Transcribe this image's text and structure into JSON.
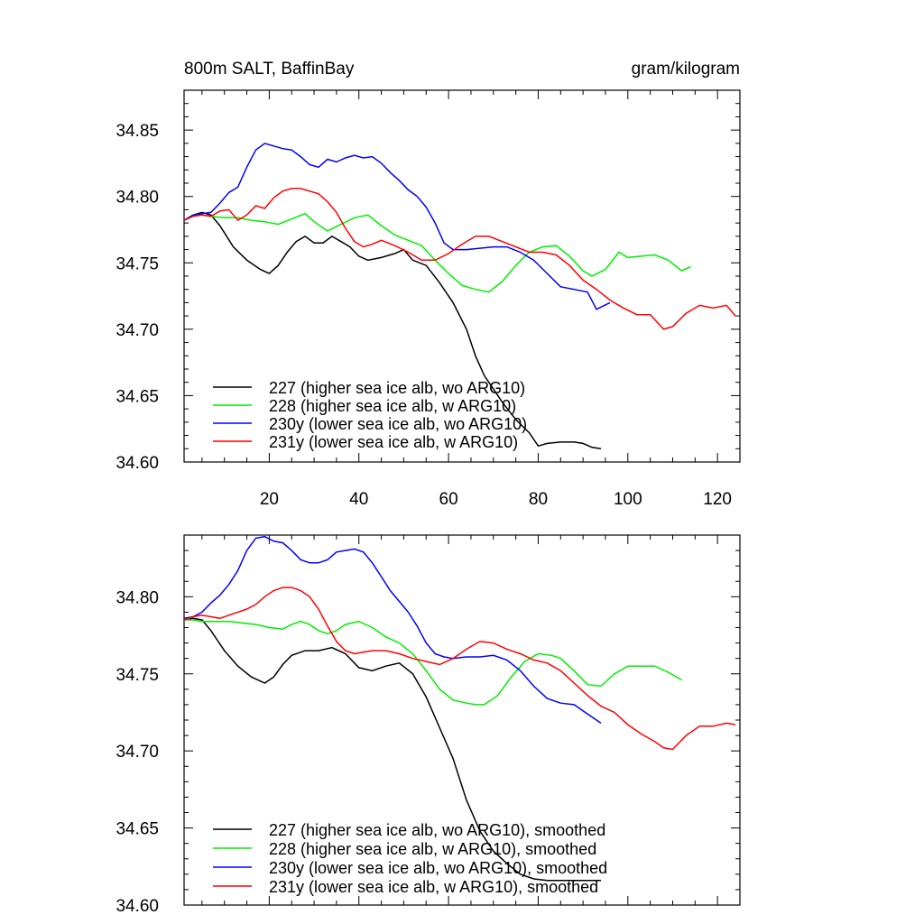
{
  "chart_data": [
    {
      "type": "line",
      "title_left": "800m SALT, BaffinBay",
      "title_right": "gram/kilogram",
      "xlabel": "",
      "ylabel": "",
      "xlim": [
        1,
        125
      ],
      "ylim": [
        34.6,
        34.88
      ],
      "xticks": [
        20,
        40,
        60,
        80,
        100,
        120
      ],
      "xtick_labels": [
        "20",
        "40",
        "60",
        "80",
        "100",
        "120"
      ],
      "yticks": [
        34.6,
        34.65,
        34.7,
        34.75,
        34.8,
        34.85
      ],
      "ytick_labels": [
        "34.60",
        "34.65",
        "34.70",
        "34.75",
        "34.80",
        "34.85"
      ],
      "legend_position": "bottom-left",
      "series": [
        {
          "name": "227 (higher sea ice alb, wo ARG10)",
          "color": "#000000",
          "x": [
            1,
            3,
            5,
            7,
            9,
            12,
            15,
            18,
            20,
            22,
            24,
            26,
            28,
            30,
            32,
            34,
            36,
            38,
            40,
            42,
            45,
            48,
            50,
            52,
            55,
            58,
            61,
            64,
            66,
            68,
            70,
            72,
            75,
            78,
            80,
            82,
            85,
            88,
            90,
            92,
            94
          ],
          "y": [
            34.782,
            34.786,
            34.788,
            34.786,
            34.778,
            34.762,
            34.752,
            34.745,
            34.742,
            34.748,
            34.758,
            34.766,
            34.77,
            34.765,
            34.765,
            34.77,
            34.766,
            34.762,
            34.755,
            34.752,
            34.754,
            34.757,
            34.76,
            34.752,
            34.748,
            34.735,
            34.72,
            34.7,
            34.68,
            34.665,
            34.655,
            34.645,
            34.632,
            34.622,
            34.612,
            34.614,
            34.615,
            34.615,
            34.614,
            34.611,
            34.61
          ]
        },
        {
          "name": "228 (higher sea ice alb, w ARG10)",
          "color": "#00ee00",
          "x": [
            1,
            3,
            5,
            7,
            10,
            13,
            16,
            19,
            22,
            25,
            28,
            30,
            33,
            36,
            39,
            42,
            45,
            48,
            51,
            54,
            57,
            60,
            63,
            66,
            69,
            72,
            75,
            78,
            81,
            84,
            87,
            90,
            92,
            95,
            98,
            100,
            103,
            106,
            109,
            112,
            114
          ],
          "y": [
            34.782,
            34.786,
            34.786,
            34.785,
            34.784,
            34.784,
            34.782,
            34.781,
            34.779,
            34.783,
            34.787,
            34.781,
            34.774,
            34.779,
            34.784,
            34.786,
            34.778,
            34.771,
            34.767,
            34.763,
            34.752,
            34.742,
            34.733,
            34.73,
            34.728,
            34.736,
            34.748,
            34.758,
            34.762,
            34.763,
            34.755,
            34.744,
            34.74,
            34.745,
            34.758,
            34.754,
            34.755,
            34.756,
            34.752,
            34.744,
            34.747
          ]
        },
        {
          "name": "230y (lower sea ice alb, wo ARG10)",
          "color": "#0000ff",
          "x": [
            1,
            3,
            5,
            7,
            9,
            11,
            13,
            15,
            17,
            19,
            21,
            23,
            25,
            27,
            29,
            31,
            33,
            35,
            37,
            39,
            41,
            43,
            45,
            47,
            49,
            51,
            53,
            55,
            57,
            59,
            61,
            64,
            67,
            70,
            73,
            76,
            79,
            82,
            85,
            88,
            91,
            93,
            96
          ],
          "y": [
            34.782,
            34.786,
            34.787,
            34.788,
            34.795,
            34.803,
            34.807,
            34.822,
            34.835,
            34.84,
            34.838,
            34.836,
            34.835,
            34.83,
            34.824,
            34.822,
            34.828,
            34.826,
            34.829,
            34.831,
            34.829,
            34.83,
            34.825,
            34.818,
            34.812,
            34.805,
            34.8,
            34.792,
            34.78,
            34.765,
            34.76,
            34.76,
            34.761,
            34.762,
            34.762,
            34.758,
            34.752,
            34.742,
            34.732,
            34.73,
            34.728,
            34.715,
            34.72
          ]
        },
        {
          "name": "231y (lower sea ice alb, w ARG10)",
          "color": "#ff0000",
          "x": [
            1,
            3,
            5,
            7,
            9,
            11,
            13,
            15,
            17,
            19,
            21,
            23,
            25,
            27,
            29,
            31,
            33,
            35,
            37,
            39,
            41,
            43,
            45,
            48,
            51,
            54,
            57,
            60,
            63,
            66,
            69,
            72,
            75,
            78,
            81,
            84,
            87,
            90,
            93,
            96,
            99,
            102,
            105,
            108,
            110,
            113,
            116,
            119,
            122,
            124
          ],
          "y": [
            34.782,
            34.785,
            34.786,
            34.785,
            34.789,
            34.79,
            34.782,
            34.786,
            34.793,
            34.791,
            34.799,
            34.804,
            34.806,
            34.806,
            34.804,
            34.802,
            34.796,
            34.788,
            34.776,
            34.766,
            34.762,
            34.764,
            34.767,
            34.763,
            34.758,
            34.752,
            34.752,
            34.757,
            34.764,
            34.77,
            34.77,
            34.766,
            34.762,
            34.758,
            34.758,
            34.756,
            34.748,
            34.737,
            34.73,
            34.722,
            34.716,
            34.711,
            34.711,
            34.7,
            34.702,
            34.712,
            34.718,
            34.716,
            34.718,
            34.71
          ]
        }
      ]
    },
    {
      "type": "line",
      "xlim": [
        1,
        125
      ],
      "ylim": [
        34.6,
        34.84
      ],
      "xticks": [
        20,
        40,
        60,
        80,
        100,
        120
      ],
      "yticks": [
        34.6,
        34.65,
        34.7,
        34.75,
        34.8
      ],
      "ytick_labels": [
        "34.60",
        "34.65",
        "34.70",
        "34.75",
        "34.80"
      ],
      "legend_position": "bottom-left",
      "series": [
        {
          "name": "227 (higher sea ice alb, wo ARG10), smoothed",
          "color": "#000000",
          "x": [
            1,
            3,
            5,
            7,
            10,
            13,
            16,
            19,
            21,
            23,
            25,
            28,
            31,
            34,
            37,
            40,
            43,
            46,
            49,
            52,
            55,
            58,
            61,
            64,
            67,
            70,
            73,
            76,
            79,
            82,
            85,
            88,
            91,
            94
          ],
          "y": [
            34.785,
            34.786,
            34.785,
            34.778,
            34.765,
            34.755,
            34.748,
            34.744,
            34.748,
            34.756,
            34.762,
            34.765,
            34.765,
            34.767,
            34.763,
            34.754,
            34.752,
            34.755,
            34.757,
            34.75,
            34.735,
            34.715,
            34.695,
            34.668,
            34.648,
            34.635,
            34.627,
            34.62,
            34.617,
            34.616,
            34.616,
            34.616,
            34.616,
            34.616
          ]
        },
        {
          "name": "228 (higher sea ice alb, w ARG10), smoothed",
          "color": "#00ee00",
          "x": [
            1,
            3,
            5,
            8,
            11,
            14,
            17,
            20,
            23,
            25,
            27,
            29,
            31,
            33,
            35,
            37,
            40,
            43,
            46,
            49,
            52,
            55,
            58,
            61,
            64,
            66,
            68,
            71,
            74,
            77,
            80,
            83,
            85,
            88,
            91,
            94,
            97,
            100,
            103,
            106,
            109,
            112
          ],
          "y": [
            34.785,
            34.785,
            34.784,
            34.784,
            34.784,
            34.783,
            34.782,
            34.78,
            34.779,
            34.782,
            34.784,
            34.782,
            34.778,
            34.776,
            34.778,
            34.782,
            34.784,
            34.78,
            34.774,
            34.77,
            34.763,
            34.752,
            34.74,
            34.733,
            34.731,
            34.73,
            34.73,
            34.736,
            34.748,
            34.758,
            34.763,
            34.762,
            34.76,
            34.752,
            34.743,
            34.742,
            34.75,
            34.755,
            34.755,
            34.755,
            34.751,
            34.746
          ]
        },
        {
          "name": "230y (lower sea ice alb, wo ARG10), smoothed",
          "color": "#0000ff",
          "x": [
            1,
            3,
            5,
            7,
            9,
            11,
            13,
            15,
            17,
            19,
            21,
            23,
            25,
            27,
            29,
            31,
            33,
            35,
            37,
            39,
            41,
            43,
            45,
            47,
            49,
            51,
            53,
            55,
            57,
            59,
            61,
            64,
            67,
            70,
            73,
            76,
            79,
            82,
            85,
            88,
            91,
            94
          ],
          "y": [
            34.786,
            34.787,
            34.79,
            34.796,
            34.801,
            34.808,
            34.817,
            34.83,
            34.838,
            34.839,
            34.836,
            34.835,
            34.83,
            34.824,
            34.822,
            34.822,
            34.824,
            34.829,
            34.83,
            34.831,
            34.829,
            34.822,
            34.813,
            34.804,
            34.797,
            34.79,
            34.781,
            34.77,
            34.763,
            34.761,
            34.76,
            34.761,
            34.761,
            34.762,
            34.759,
            34.752,
            34.742,
            34.734,
            34.731,
            34.73,
            34.724,
            34.718
          ]
        },
        {
          "name": "231y (lower sea ice alb, w ARG10), smoothed",
          "color": "#ff0000",
          "x": [
            1,
            3,
            5,
            7,
            9,
            11,
            13,
            15,
            17,
            19,
            21,
            23,
            25,
            27,
            29,
            31,
            33,
            35,
            37,
            39,
            41,
            43,
            46,
            49,
            52,
            55,
            58,
            61,
            64,
            67,
            70,
            73,
            76,
            79,
            82,
            85,
            88,
            91,
            94,
            97,
            100,
            103,
            106,
            108,
            110,
            113,
            116,
            119,
            122,
            124
          ],
          "y": [
            34.785,
            34.787,
            34.788,
            34.787,
            34.786,
            34.788,
            34.79,
            34.792,
            34.795,
            34.8,
            34.804,
            34.806,
            34.806,
            34.804,
            34.8,
            34.792,
            34.781,
            34.771,
            34.765,
            34.763,
            34.764,
            34.765,
            34.765,
            34.763,
            34.76,
            34.758,
            34.756,
            34.76,
            34.766,
            34.771,
            34.77,
            34.766,
            34.763,
            34.759,
            34.757,
            34.752,
            34.744,
            34.736,
            34.729,
            34.725,
            34.717,
            34.711,
            34.706,
            34.702,
            34.701,
            34.71,
            34.716,
            34.716,
            34.718,
            34.717
          ]
        }
      ]
    }
  ]
}
